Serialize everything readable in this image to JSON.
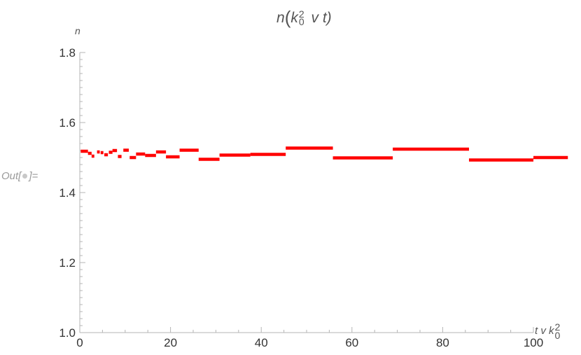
{
  "output_prompt": {
    "prefix": "Out[",
    "suffix": "]="
  },
  "chart_data": {
    "type": "scatter",
    "title": "n(k_0^2 v t)",
    "title_parts": {
      "before": "n",
      "k": "k",
      "sup": "2",
      "sub": "0",
      "after": " v t)"
    },
    "ylabel": "n",
    "xlabel": "t v k_0^2",
    "xlabel_parts": {
      "before": "t v ",
      "k": "k",
      "sup": "2",
      "sub": "0"
    },
    "xlim": [
      0,
      100
    ],
    "ylim": [
      1.0,
      1.8
    ],
    "x_ticks": [
      0,
      20,
      40,
      60,
      80,
      100
    ],
    "x_tick_labels": [
      "0",
      "20",
      "40",
      "60",
      "80",
      "100"
    ],
    "y_ticks": [
      1.0,
      1.2,
      1.4,
      1.6,
      1.8
    ],
    "y_tick_labels": [
      "1.0",
      "1.2",
      "1.4",
      "1.6",
      "1.8"
    ],
    "grid": false,
    "color": "#ff0000",
    "series": [
      {
        "segments": [
          {
            "x0": 0.2,
            "x1": 1.8,
            "y": 1.518
          },
          {
            "x0": 1.8,
            "x1": 2.6,
            "y": 1.512
          },
          {
            "x0": 2.6,
            "x1": 3.2,
            "y": 1.504
          },
          {
            "x0": 3.8,
            "x1": 4.4,
            "y": 1.516
          },
          {
            "x0": 4.6,
            "x1": 5.2,
            "y": 1.514
          },
          {
            "x0": 5.4,
            "x1": 6.2,
            "y": 1.508
          },
          {
            "x0": 6.4,
            "x1": 7.2,
            "y": 1.515
          },
          {
            "x0": 7.2,
            "x1": 8.2,
            "y": 1.52
          },
          {
            "x0": 8.4,
            "x1": 9.2,
            "y": 1.503
          },
          {
            "x0": 9.6,
            "x1": 10.8,
            "y": 1.521
          },
          {
            "x0": 11.0,
            "x1": 12.4,
            "y": 1.5
          },
          {
            "x0": 12.4,
            "x1": 14.4,
            "y": 1.51
          },
          {
            "x0": 14.4,
            "x1": 16.8,
            "y": 1.506
          },
          {
            "x0": 16.8,
            "x1": 19.0,
            "y": 1.516
          },
          {
            "x0": 19.0,
            "x1": 22.0,
            "y": 1.502
          },
          {
            "x0": 22.0,
            "x1": 26.2,
            "y": 1.521
          },
          {
            "x0": 26.2,
            "x1": 30.8,
            "y": 1.495
          },
          {
            "x0": 30.8,
            "x1": 37.6,
            "y": 1.507
          },
          {
            "x0": 37.6,
            "x1": 45.4,
            "y": 1.509
          },
          {
            "x0": 45.4,
            "x1": 55.8,
            "y": 1.527
          },
          {
            "x0": 55.8,
            "x1": 69.0,
            "y": 1.499
          },
          {
            "x0": 69.0,
            "x1": 85.8,
            "y": 1.524
          },
          {
            "x0": 85.8,
            "x1": 107.6,
            "y": 1.493
          },
          {
            "x0": 107.6,
            "x1": 109.0,
            "y": 1.5
          }
        ]
      }
    ]
  }
}
